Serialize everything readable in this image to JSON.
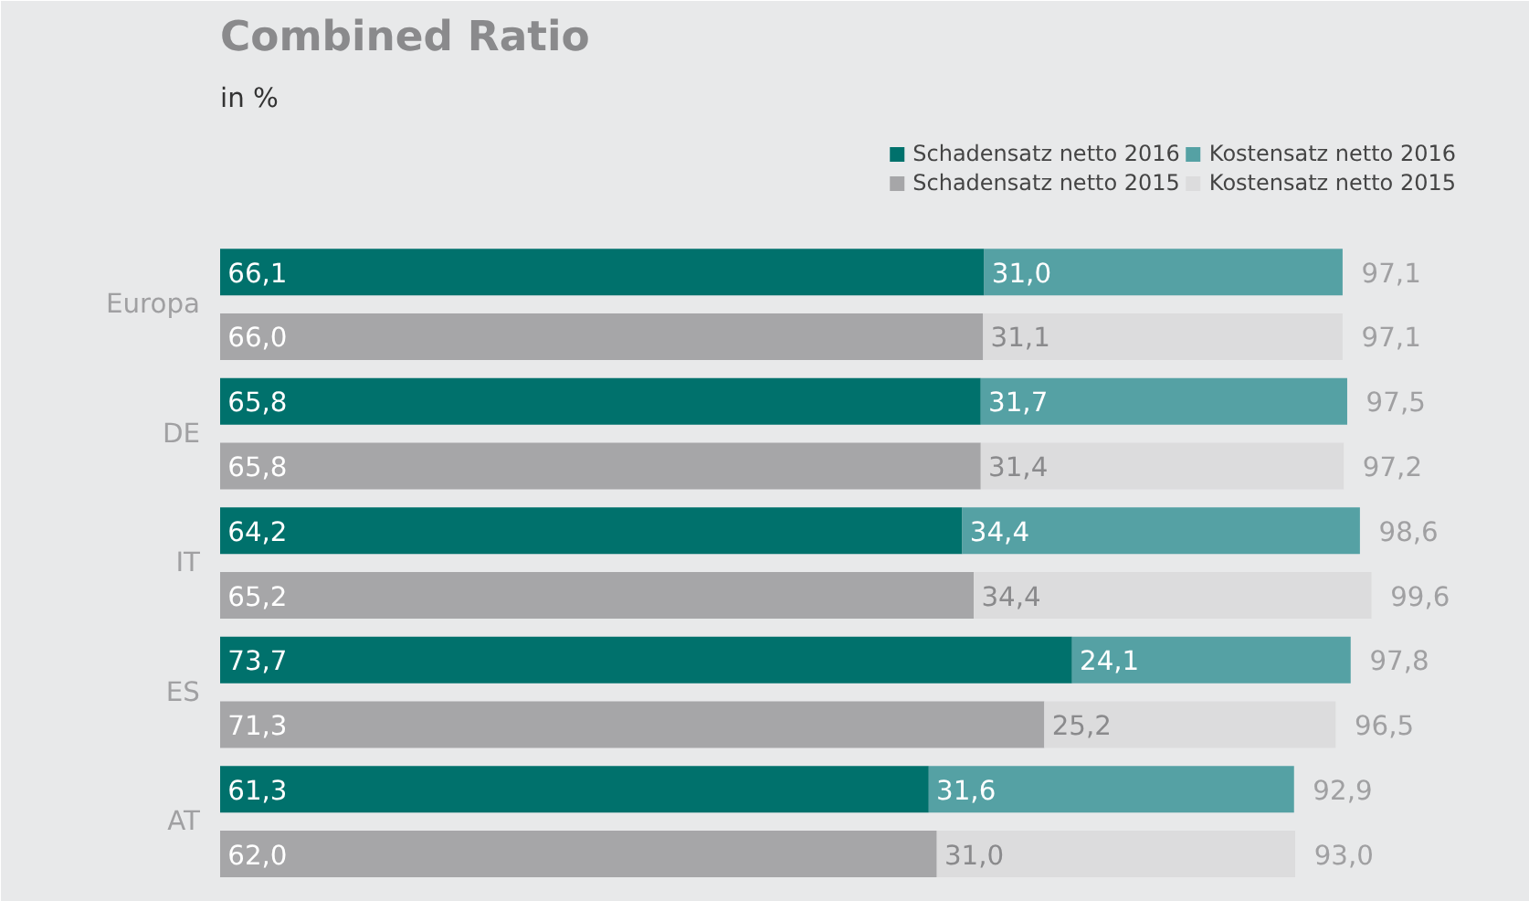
{
  "chart_data": {
    "type": "bar",
    "orientation": "horizontal",
    "stacked": true,
    "title": "Combined Ratio",
    "subtitle": "in %",
    "categories": [
      "Europa",
      null,
      "DE",
      null,
      "IT",
      null,
      "ES",
      null,
      "AT",
      null
    ],
    "series": [
      {
        "name": "Schadensatz netto 2016",
        "color": "#00716c",
        "values": [
          66.1,
          null,
          65.8,
          null,
          64.2,
          null,
          73.7,
          null,
          61.3,
          null
        ],
        "value_labels": [
          "66,1",
          null,
          "65,8",
          null,
          "64,2",
          null,
          "73,7",
          null,
          "61,3",
          null
        ]
      },
      {
        "name": "Kostensatz netto 2016",
        "color": "#55a1a4",
        "values": [
          31.0,
          null,
          31.7,
          null,
          34.4,
          null,
          24.1,
          null,
          31.6,
          null
        ],
        "value_labels": [
          "31,0",
          null,
          "31,7",
          null,
          "34,4",
          null,
          "24,1",
          null,
          "31,6",
          null
        ]
      },
      {
        "name": "Schadensatz netto 2015",
        "color": "#a6a6a8",
        "values": [
          null,
          66.0,
          null,
          65.8,
          null,
          65.2,
          null,
          71.3,
          null,
          62.0
        ],
        "value_labels": [
          null,
          "66,0",
          null,
          "65,8",
          null,
          "65,2",
          null,
          "71,3",
          null,
          "62,0"
        ]
      },
      {
        "name": "Kostensatz netto 2015",
        "color": "#dcdcdd",
        "values": [
          null,
          31.1,
          null,
          31.4,
          null,
          34.4,
          null,
          25.2,
          null,
          31.0
        ],
        "value_labels": [
          null,
          "31,1",
          null,
          "31,4",
          null,
          "34,4",
          null,
          "25,2",
          null,
          "31,0"
        ]
      }
    ],
    "totals": [
      "97,1",
      "97,1",
      "97,5",
      "97,2",
      "98,6",
      "99,6",
      "97,8",
      "96,5",
      "92,9",
      "93,0"
    ],
    "legend": "top"
  }
}
